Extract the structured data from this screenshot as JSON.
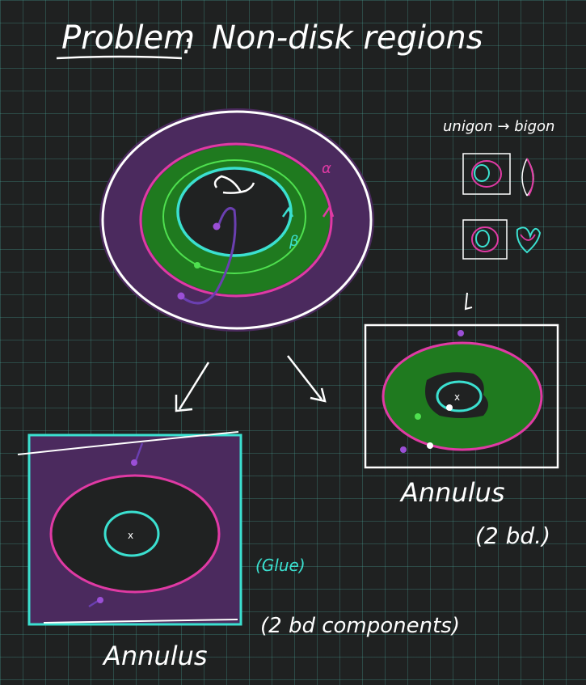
{
  "title": {
    "problem": "Problem",
    "separator": ":",
    "topic": "Non-disk regions"
  },
  "surface": {
    "alpha_label": "α",
    "beta_label": "β"
  },
  "inset": {
    "caption": "unigon → bigon"
  },
  "left_result": {
    "label": "Annulus",
    "glue_note": "(Glue)",
    "boundary_note": "(2 bd components)",
    "puncture_mark": "x"
  },
  "right_result": {
    "label": "Annulus",
    "boundary_note": "(2 bd.)",
    "puncture_mark": "x"
  },
  "colors": {
    "purple_region": "#4b2a5e",
    "green_region": "#1f7a1f",
    "magenta_curve": "#e03aa4",
    "cyan_curve": "#3be0d0",
    "green_curve": "#4fe04f",
    "purple_curve": "#6a3fb0",
    "ink": "#ffffff"
  }
}
